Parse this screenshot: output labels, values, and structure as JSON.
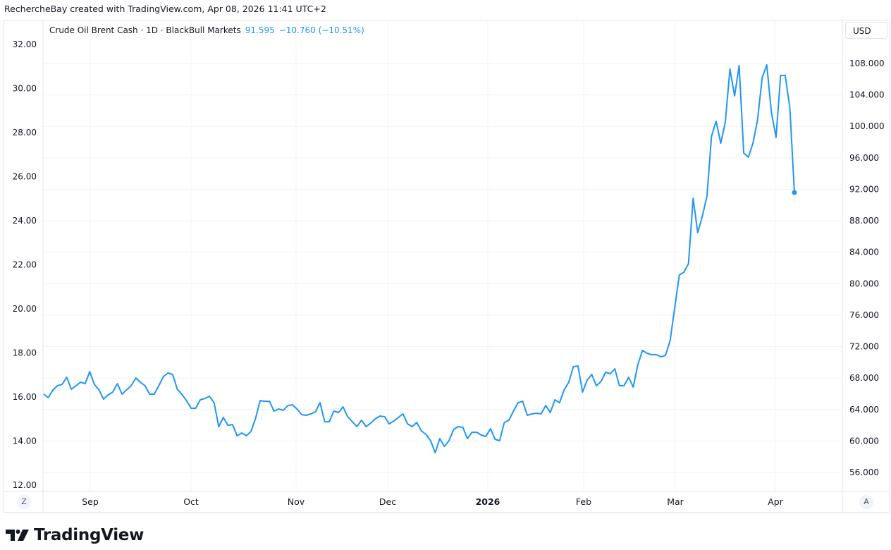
{
  "caption": "RechercheBay created with TradingView.com, Apr 08, 2026 11:41 UTC+2",
  "legend": {
    "symbol": "Crude Oil Brent Cash · 1D · BlackBull Markets",
    "last": "91.595",
    "change": "−10.760 (−10.51%)"
  },
  "currency": "USD",
  "corner_left": "Z",
  "corner_right": "A",
  "brand": "TradingView",
  "colors": {
    "line": "#2196f3",
    "grid": "#f0f3fa",
    "border": "#e0e3eb"
  },
  "chart_data": {
    "type": "line",
    "title": "Crude Oil Brent Cash · 1D · BlackBull Markets",
    "grid": true,
    "x_ticks": [
      "Sep",
      "Oct",
      "Nov",
      "Dec",
      "2026",
      "Feb",
      "Mar",
      "Apr"
    ],
    "y_right": {
      "ticks": [
        "108.000",
        "104.000",
        "100.000",
        "96.000",
        "92.000",
        "88.000",
        "84.000",
        "80.000",
        "76.000",
        "72.000",
        "68.000",
        "64.000",
        "60.000",
        "56.000"
      ],
      "ylim": [
        53.7,
        110.2
      ]
    },
    "y_left": {
      "ticks": [
        "32.00",
        "30.00",
        "28.00",
        "26.00",
        "24.00",
        "22.00",
        "20.00",
        "18.00",
        "16.00",
        "14.00",
        "12.00"
      ]
    },
    "series": [
      {
        "values": [
          65.95,
          65.5,
          66.49,
          67.03,
          67.2,
          68.1,
          66.58,
          67.03,
          67.47,
          67.29,
          68.82,
          67.2,
          66.49,
          65.32,
          65.86,
          66.22,
          67.29,
          65.95,
          66.49,
          67.03,
          68.01,
          67.47,
          67.03,
          65.95,
          65.95,
          67.03,
          68.19,
          68.64,
          68.46,
          66.58,
          65.95,
          65.14,
          64.16,
          64.16,
          65.23,
          65.41,
          65.68,
          64.87,
          61.83,
          62.99,
          62.0,
          62.09,
          60.66,
          61.02,
          60.66,
          61.2,
          62.9,
          65.14,
          65.05,
          65.05,
          63.8,
          64.07,
          63.89,
          64.51,
          64.6,
          64.07,
          63.35,
          63.26,
          63.44,
          63.71,
          64.87,
          62.45,
          62.45,
          63.8,
          63.62,
          64.34,
          63.08,
          62.45,
          61.83,
          62.63,
          61.83,
          62.27,
          62.81,
          63.17,
          63.08,
          62.18,
          62.54,
          62.99,
          63.44,
          62.18,
          61.83,
          62.36,
          61.29,
          60.84,
          60.03,
          58.51,
          60.3,
          59.31,
          60.03,
          61.47,
          61.83,
          61.74,
          60.3,
          61.11,
          61.11,
          60.75,
          60.57,
          61.56,
          60.21,
          60.03,
          62.36,
          62.63,
          63.8,
          64.87,
          65.05,
          63.26,
          63.44,
          63.53,
          63.44,
          64.51,
          63.62,
          65.23,
          64.87,
          66.49,
          67.47,
          69.45,
          69.54,
          66.22,
          67.74,
          68.46,
          67.03,
          67.56,
          68.73,
          68.55,
          69.18,
          67.03,
          67.03,
          68.1,
          66.85,
          69.72,
          71.51,
          71.15,
          70.97,
          70.97,
          70.7,
          70.88,
          72.76,
          76.89,
          81.1,
          81.46,
          82.54,
          90.87,
          86.48,
          88.54,
          91.14,
          98.76,
          100.65,
          97.87,
          100.56,
          107.28,
          103.88,
          107.73,
          96.61,
          96.08,
          97.87,
          100.83,
          106.21,
          107.82,
          101.81,
          98.59,
          106.48,
          106.48,
          102.35,
          91.595
        ]
      }
    ]
  }
}
